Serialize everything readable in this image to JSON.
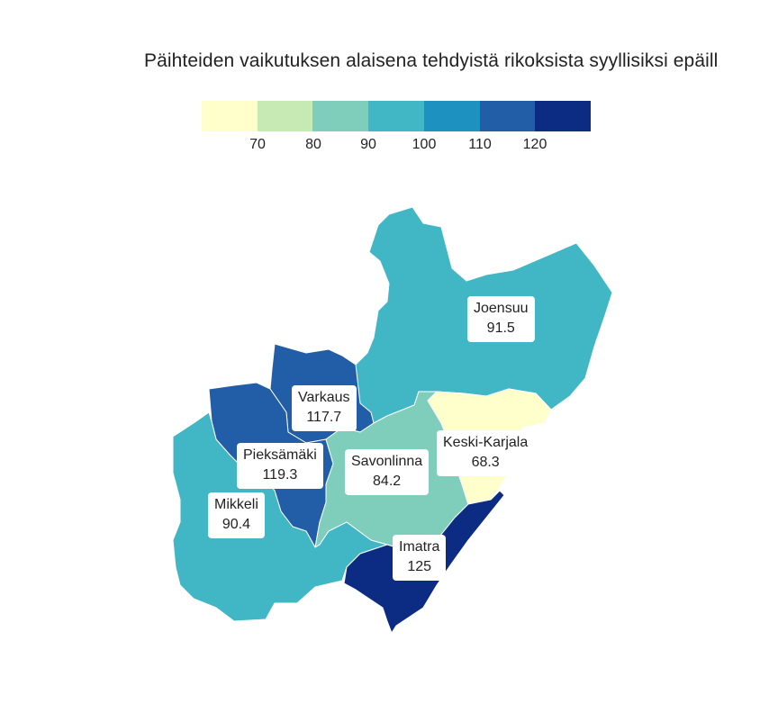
{
  "title": "Päihteiden vaikutuksen alaisena tehdyistä rikoksista syyllisiksi epäill",
  "legend": {
    "colors": [
      "#ffffcc",
      "#c7e9b4",
      "#7fcdbb",
      "#41b6c4",
      "#1d91c0",
      "#225ea8",
      "#0c2c84"
    ],
    "ticks": [
      "70",
      "80",
      "90",
      "100",
      "110",
      "120"
    ]
  },
  "regions": [
    {
      "key": "joensuu",
      "name": "Joensuu",
      "value": "91.5",
      "color": "#41b6c4"
    },
    {
      "key": "varkaus",
      "name": "Varkaus",
      "value": "117.7",
      "color": "#225ea8"
    },
    {
      "key": "pieksamaki",
      "name": "Pieksämäki",
      "value": "119.3",
      "color": "#225ea8"
    },
    {
      "key": "savonlinna",
      "name": "Savonlinna",
      "value": "84.2",
      "color": "#7fcdbb"
    },
    {
      "key": "keski-karjala",
      "name": "Keski-Karjala",
      "value": "68.3",
      "color": "#ffffcc"
    },
    {
      "key": "mikkeli",
      "name": "Mikkeli",
      "value": "90.4",
      "color": "#41b6c4"
    },
    {
      "key": "imatra",
      "name": "Imatra",
      "value": "125",
      "color": "#0c2c84"
    }
  ]
}
